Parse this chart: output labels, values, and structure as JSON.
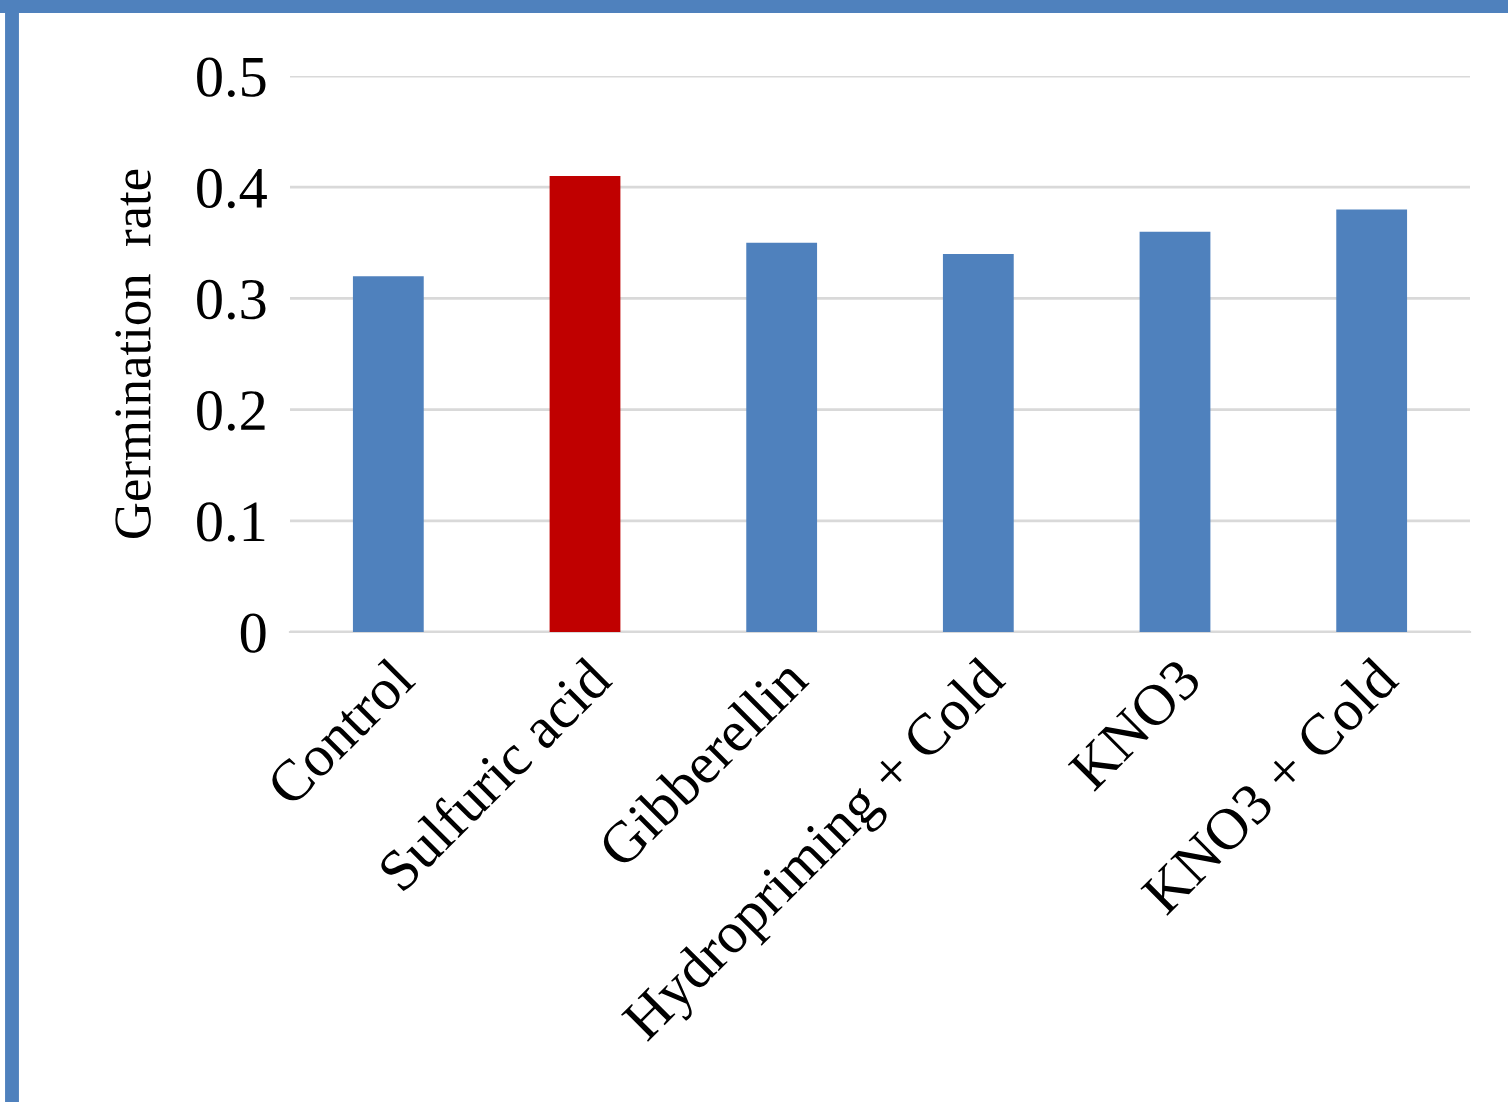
{
  "chart_data": {
    "type": "bar",
    "ylabel": "Germination  rate",
    "categories": [
      "Control",
      "Sulfuric acid",
      "Gibberellin",
      "Hydropriming + Cold",
      "KNO3",
      "KNO3 + Cold"
    ],
    "values": [
      0.32,
      0.41,
      0.35,
      0.34,
      0.36,
      0.38
    ],
    "colors": [
      "#4f81bd",
      "#c00000",
      "#4f81bd",
      "#4f81bd",
      "#4f81bd",
      "#4f81bd"
    ],
    "ylim": [
      0,
      0.5
    ],
    "yticks": [
      {
        "value": 0,
        "label": "0"
      },
      0.1,
      0.2,
      0.3,
      0.4,
      0.5
    ],
    "grid": "y"
  }
}
